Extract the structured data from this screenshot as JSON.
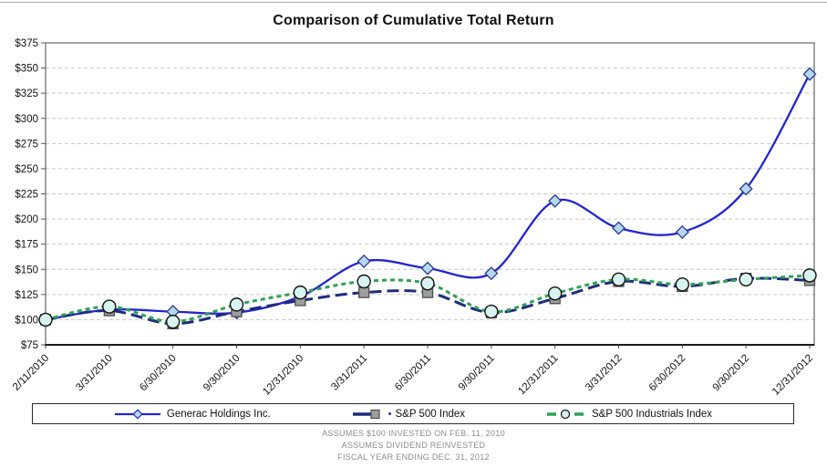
{
  "title": "Comparison of Cumulative Total Return",
  "legend": {
    "items": [
      {
        "label": "Generac Holdings Inc."
      },
      {
        "bullet": "•",
        "label": "S&P 500 Index"
      },
      {
        "label": "S&P 500 Industrials Index"
      }
    ]
  },
  "footnotes": [
    "ASSUMES $100 INVESTED ON FEB. 11, 2010",
    "ASSUMES DIVIDEND REINVESTED",
    "FISCAL YEAR ENDING DEC. 31, 2012"
  ],
  "chart_data": {
    "type": "line",
    "title": "Comparison of Cumulative Total Return",
    "x": [
      "2/11/2010",
      "3/31/2010",
      "6/30/2010",
      "9/30/2010",
      "12/31/2010",
      "3/31/2011",
      "6/30/2011",
      "9/30/2011",
      "12/31/2011",
      "3/31/2012",
      "6/30/2012",
      "9/30/2012",
      "12/31/2012"
    ],
    "series": [
      {
        "name": "Generac Holdings Inc.",
        "values": [
          100,
          110,
          108,
          107,
          123,
          158,
          151,
          146,
          218,
          191,
          187,
          230,
          344
        ],
        "style": "solid",
        "marker": "diamond",
        "line_color": "#2424CE",
        "marker_fill": "#B5D8EC",
        "marker_stroke": "#2B3990"
      },
      {
        "name": "S&P 500 Index",
        "values": [
          100,
          109,
          96,
          108,
          119,
          127,
          127,
          107,
          121,
          138,
          133,
          141,
          139
        ],
        "style": "long-dash",
        "marker": "square",
        "line_color": "#1F2C7C",
        "marker_fill": "#9E9E9E",
        "marker_stroke": "#4D4D4D"
      },
      {
        "name": "S&P 500 Industrials Index",
        "values": [
          100,
          113,
          98,
          115,
          127,
          138,
          136,
          108,
          126,
          140,
          135,
          140,
          144
        ],
        "style": "short-dash",
        "marker": "circle",
        "line_color": "#2EA156",
        "marker_fill": "#D8F4F0",
        "marker_stroke": "#111111"
      }
    ],
    "ylim": [
      75,
      375
    ],
    "ytick_step": 25,
    "ytick_prefix": "$",
    "grid": true,
    "grid_color": "#C6C6C6",
    "frame_color": "#8C8C8C",
    "axis_color": "#1A1A1A",
    "legend_position": "bottom"
  }
}
